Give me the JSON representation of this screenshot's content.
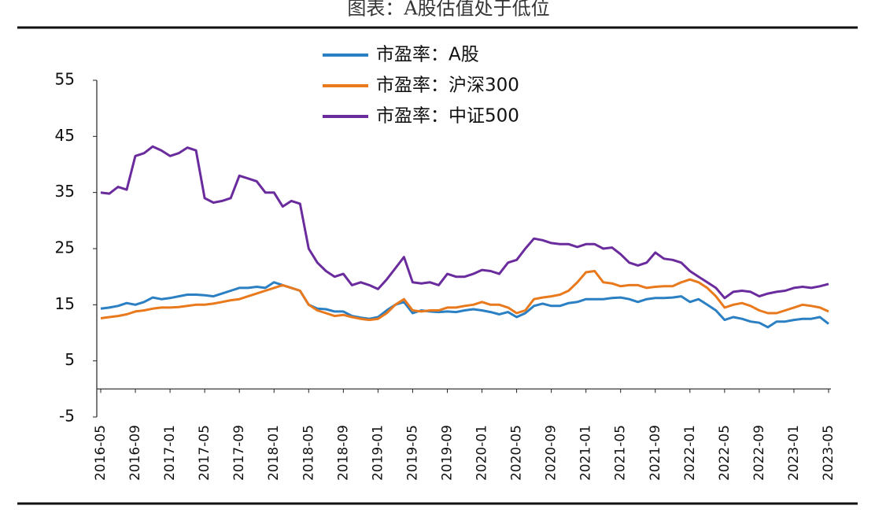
{
  "chart_data": {
    "type": "line",
    "title": "图表：A股估值处于低位",
    "categories": [
      "2016-05",
      null,
      null,
      null,
      "2016-09",
      null,
      null,
      null,
      "2017-01",
      null,
      null,
      null,
      "2017-05",
      null,
      null,
      null,
      "2017-09",
      null,
      null,
      null,
      "2018-01",
      null,
      null,
      null,
      "2018-05",
      null,
      null,
      null,
      "2018-09",
      null,
      null,
      null,
      "2019-01",
      null,
      null,
      null,
      "2019-05",
      null,
      null,
      null,
      "2019-09",
      null,
      null,
      null,
      "2020-01",
      null,
      null,
      null,
      "2020-05",
      null,
      null,
      null,
      "2020-09",
      null,
      null,
      null,
      "2021-01",
      null,
      null,
      null,
      "2021-05",
      null,
      null,
      null,
      "2021-09",
      null,
      null,
      null,
      "2022-01",
      null,
      null,
      null,
      "2022-05",
      null,
      null,
      null,
      "2022-09",
      null,
      null,
      null,
      "2023-01",
      null,
      null,
      null,
      "2023-05"
    ],
    "series": [
      {
        "name": "市盈率：A股",
        "color": "#2b7fc3",
        "values": [
          14.3,
          14.5,
          14.8,
          15.3,
          15,
          15.5,
          16.3,
          16,
          16.2,
          16.5,
          16.8,
          16.8,
          16.7,
          16.5,
          17,
          17.5,
          18,
          18,
          18.2,
          18,
          19,
          18.5,
          18,
          17.5,
          15,
          14.3,
          14.2,
          13.8,
          13.8,
          13,
          12.7,
          12.5,
          12.8,
          14,
          15,
          15.5,
          13.5,
          14,
          13.8,
          13.7,
          13.8,
          13.7,
          14,
          14.2,
          14,
          13.7,
          13.3,
          13.7,
          12.8,
          13.5,
          14.8,
          15.2,
          14.8,
          14.8,
          15.3,
          15.5,
          16,
          16,
          16,
          16.2,
          16.3,
          16,
          15.5,
          16,
          16.2,
          16.2,
          16.3,
          16.5,
          15.5,
          16,
          15,
          14,
          12.3,
          12.8,
          12.5,
          12,
          11.8,
          11,
          12,
          12,
          12.3,
          12.5,
          12.5,
          12.8,
          11.6
        ]
      },
      {
        "name": "市盈率：沪深300",
        "color": "#e8791d",
        "values": [
          12.6,
          12.8,
          13,
          13.3,
          13.8,
          14,
          14.3,
          14.5,
          14.5,
          14.6,
          14.8,
          15,
          15,
          15.2,
          15.5,
          15.8,
          16,
          16.5,
          17,
          17.5,
          18,
          18.5,
          18,
          17.5,
          15,
          14,
          13.5,
          13,
          13.2,
          12.8,
          12.5,
          12.3,
          12.5,
          13.5,
          15,
          16,
          14,
          13.8,
          14,
          14,
          14.5,
          14.5,
          14.8,
          15,
          15.5,
          15,
          15,
          14.5,
          13.5,
          14,
          16,
          16.3,
          16.5,
          16.8,
          17.5,
          19,
          20.8,
          21,
          19,
          18.8,
          18.3,
          18.5,
          18.5,
          18,
          18.2,
          18.3,
          18.3,
          19,
          19.5,
          19,
          18,
          16.5,
          14.5,
          15,
          15.3,
          14.8,
          14,
          13.5,
          13.5,
          14,
          14.5,
          15,
          14.8,
          14.5,
          13.8
        ]
      },
      {
        "name": "市盈率：中证500",
        "color": "#6a2b9d",
        "values": [
          35,
          34.8,
          36,
          35.5,
          41.5,
          42,
          43.2,
          42.5,
          41.5,
          42,
          43,
          42.5,
          34,
          33.2,
          33.5,
          34,
          38,
          37.5,
          37,
          35,
          35,
          32.5,
          33.5,
          33,
          25,
          22.5,
          21,
          20,
          20.5,
          18.5,
          19,
          18.5,
          17.8,
          19.5,
          21.5,
          23.5,
          19,
          18.8,
          19,
          18.5,
          20.5,
          20,
          20,
          20.5,
          21.2,
          21,
          20.5,
          22.5,
          23,
          25,
          26.8,
          26.5,
          26,
          25.8,
          25.8,
          25.3,
          25.8,
          25.8,
          25,
          25.2,
          24,
          22.5,
          22,
          22.5,
          24.3,
          23.2,
          23,
          22.5,
          21,
          20,
          19,
          18,
          16.2,
          17.3,
          17.5,
          17.3,
          16.5,
          17,
          17.3,
          17.5,
          18,
          18.2,
          18,
          18.3,
          18.7
        ]
      }
    ],
    "ylim": [
      -5,
      55
    ],
    "yticks": [
      -5,
      5,
      15,
      25,
      35,
      45,
      55
    ]
  }
}
